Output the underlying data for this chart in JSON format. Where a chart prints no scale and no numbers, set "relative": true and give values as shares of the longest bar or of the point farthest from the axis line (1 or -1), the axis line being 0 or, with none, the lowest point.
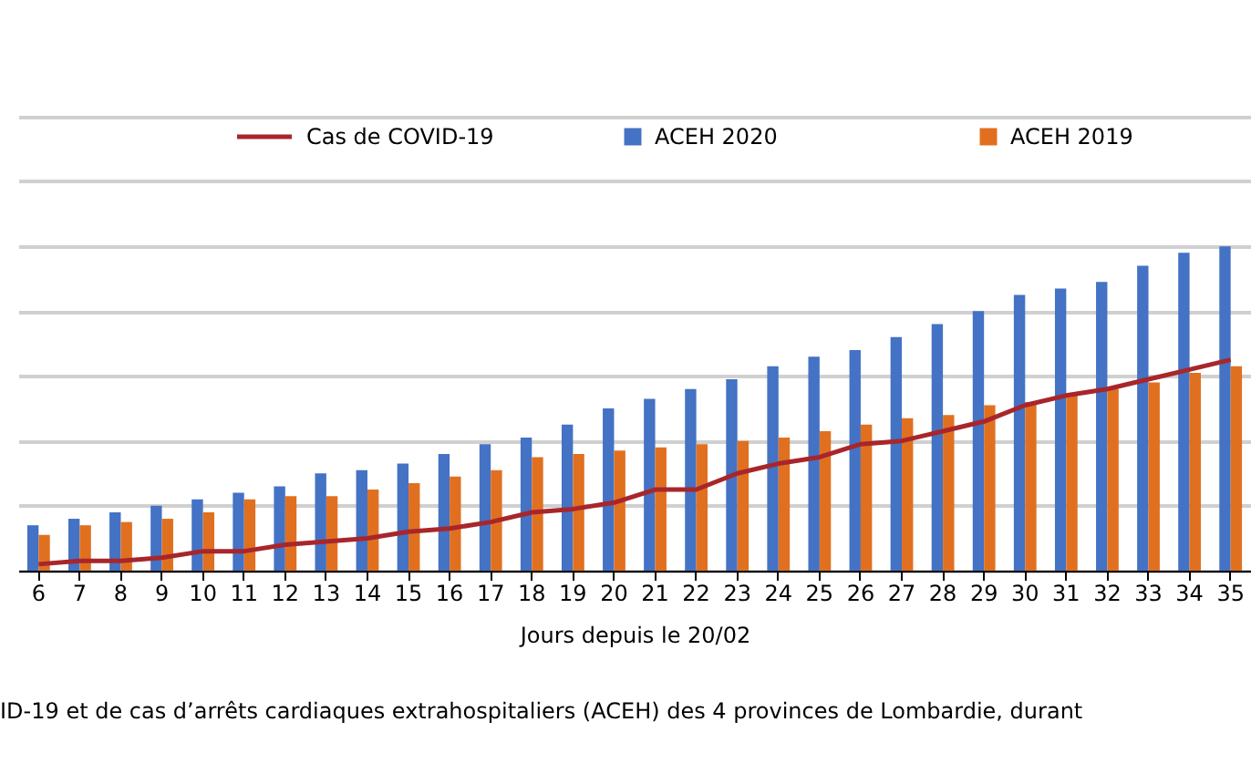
{
  "chart_data": {
    "type": "bar",
    "relative": true,
    "xlabel": "Jours depuis le 20/02",
    "categories": [
      "6",
      "7",
      "8",
      "9",
      "10",
      "11",
      "12",
      "13",
      "14",
      "15",
      "16",
      "17",
      "18",
      "19",
      "20",
      "21",
      "22",
      "23",
      "24",
      "25",
      "26",
      "27",
      "28",
      "29",
      "30",
      "31",
      "32",
      "33",
      "34",
      "35"
    ],
    "series": [
      {
        "name": "Cas de COVID-19",
        "type": "line",
        "color": "#a8262b",
        "values": [
          0.02,
          0.03,
          0.03,
          0.04,
          0.06,
          0.06,
          0.08,
          0.09,
          0.1,
          0.12,
          0.13,
          0.15,
          0.18,
          0.19,
          0.21,
          0.25,
          0.25,
          0.3,
          0.33,
          0.35,
          0.39,
          0.4,
          0.43,
          0.46,
          0.51,
          0.54,
          0.56,
          0.59,
          0.62,
          0.65
        ]
      },
      {
        "name": "ACEH 2020",
        "color": "#4472c4",
        "values": [
          0.14,
          0.16,
          0.18,
          0.2,
          0.22,
          0.24,
          0.26,
          0.3,
          0.31,
          0.33,
          0.36,
          0.39,
          0.41,
          0.45,
          0.5,
          0.53,
          0.56,
          0.59,
          0.63,
          0.66,
          0.68,
          0.72,
          0.76,
          0.8,
          0.85,
          0.87,
          0.89,
          0.94,
          0.98,
          1
        ]
      },
      {
        "name": "ACEH 2019",
        "color": "#e07020",
        "values": [
          0.11,
          0.14,
          0.15,
          0.16,
          0.18,
          0.22,
          0.23,
          0.23,
          0.25,
          0.27,
          0.29,
          0.31,
          0.35,
          0.36,
          0.37,
          0.38,
          0.39,
          0.4,
          0.41,
          0.43,
          0.45,
          0.47,
          0.48,
          0.51,
          0.52,
          0.54,
          0.56,
          0.58,
          0.61,
          0.63
        ]
      }
    ],
    "grid": "y",
    "legend": "top",
    "annotations": [
      "ID-19 et de cas d’arrêts cardiaques extrahospitaliers (ACEH) des 4 provinces de Lombardie, durant"
    ]
  }
}
